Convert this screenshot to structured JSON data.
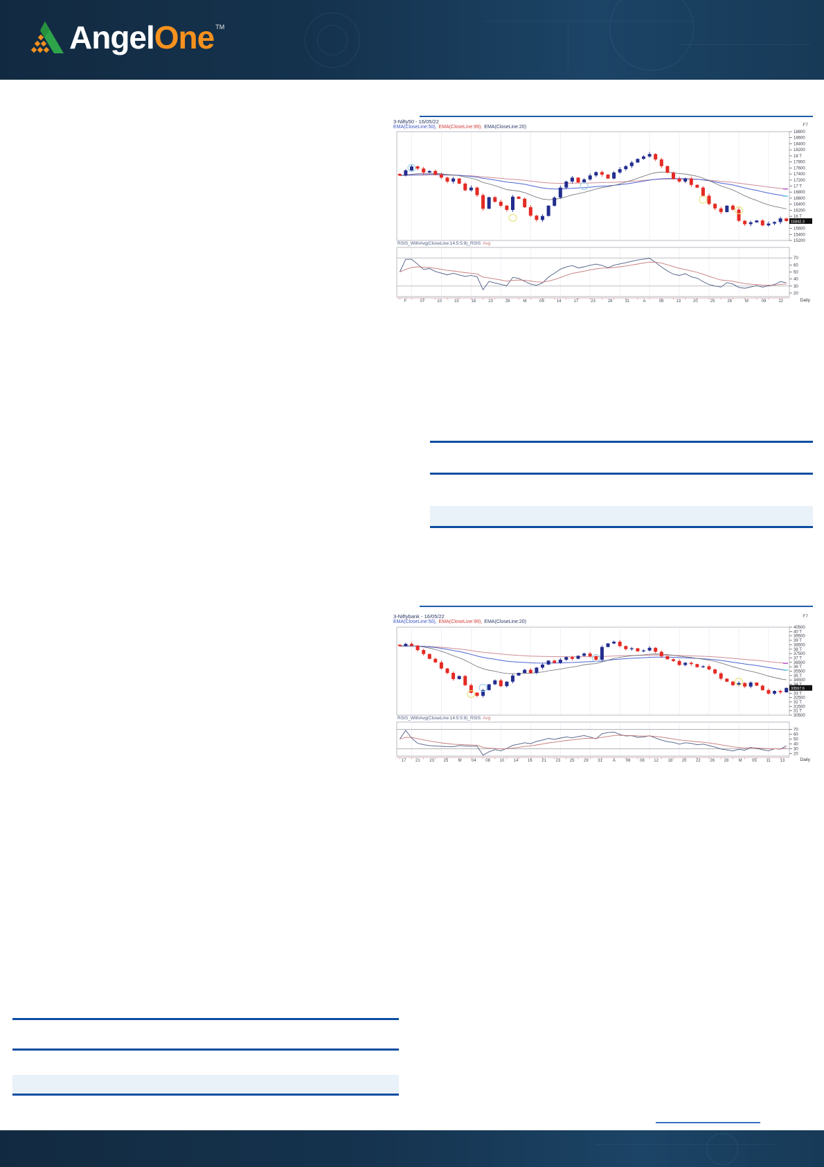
{
  "header": {
    "logo_angel": "Angel",
    "logo_one": "One",
    "logo_tm": "TM"
  },
  "theme": {
    "rule_blue": "#0b4da2",
    "chart_rule_blue": "#1f5ca9",
    "band_fill": "#e9f1f9",
    "header_bg": "#15334e",
    "logo_green": "#2ea44a",
    "logo_orange": "#f5911e",
    "candle_up": "#232d8f",
    "candle_down": "#e42a24",
    "ema20": "#6b6b74",
    "ema50": "#4c63cf",
    "ema99": "#cf8d95",
    "rsi": "#4a5a80",
    "rsi_avg": "#c57676",
    "axis_text": "#3a3a4a",
    "grid": "#ececf4",
    "last_price_bg": "#101010"
  },
  "chart_data": [
    {
      "type": "candlestick",
      "title": "3-Nifty50 - 16/05/22",
      "corner_label": "F7",
      "timeframe_label": "Daily",
      "legend": [
        {
          "text": "EMA(CloseLine:50),",
          "color": "#3d55c6"
        },
        {
          "text": "EMA(CloseLine:99),",
          "color": "#d23a3a"
        },
        {
          "text": "EMA(CloseLine:20)",
          "color": "#2b3a67"
        }
      ],
      "rsi_label": "RSIS_WithAvg(CloseLine:14:5:5:9)_RSIS",
      "rsi_label_avg": "Avg",
      "rsi_ticks": [
        70,
        60,
        50,
        40,
        30,
        20
      ],
      "y_min": 15200,
      "y_max": 18800,
      "y_step": 200,
      "last_price": "15842.3",
      "x_labels": [
        "F",
        "07",
        "10",
        "15",
        "18",
        "23",
        "28",
        "M",
        "09",
        "14",
        "17",
        "23",
        "28",
        "31",
        "A",
        "08",
        "13",
        "20",
        "25",
        "28",
        "M",
        "09",
        "12"
      ],
      "closes": [
        17350,
        17520,
        17650,
        17580,
        17450,
        17500,
        17380,
        17280,
        17150,
        17250,
        17080,
        16860,
        16950,
        16700,
        16250,
        16630,
        16480,
        16350,
        16210,
        16650,
        16580,
        16300,
        16020,
        15880,
        16010,
        16350,
        16620,
        16950,
        17150,
        17280,
        17120,
        17220,
        17350,
        17460,
        17380,
        17250,
        17450,
        17560,
        17660,
        17780,
        17900,
        17980,
        18060,
        17880,
        17660,
        17440,
        17240,
        17150,
        17250,
        17040,
        16950,
        16680,
        16410,
        16260,
        16140,
        16350,
        16220,
        15850,
        15740,
        15800,
        15860,
        15700,
        15760,
        15810,
        15930,
        15842
      ],
      "annotations": [
        {
          "i": 2,
          "p": 17600,
          "color": "#9fd4ea"
        },
        {
          "i": 19,
          "p": 15950,
          "color": "#e9e279"
        },
        {
          "i": 31,
          "p": 17000,
          "color": "#9fd4ea"
        },
        {
          "i": 51,
          "p": 16550,
          "color": "#e9e279"
        },
        {
          "i": 57,
          "p": 16200,
          "color": "#e9e279"
        }
      ]
    },
    {
      "type": "candlestick",
      "title": "3-Niftybank - 16/05/22",
      "corner_label": "F7",
      "timeframe_label": "Daily",
      "legend": [
        {
          "text": "EMA(CloseLine:50),",
          "color": "#3d55c6"
        },
        {
          "text": "EMA(CloseLine:99),",
          "color": "#d23a3a"
        },
        {
          "text": "EMA(CloseLine:20)",
          "color": "#2b3a67"
        }
      ],
      "rsi_label": "RSIS_WithAvg(CloseLine:14:5:5:9)_RSIS",
      "rsi_label_avg": "Avg",
      "rsi_ticks": [
        70,
        60,
        50,
        40,
        30,
        20
      ],
      "y_min": 30500,
      "y_max": 40500,
      "y_step": 500,
      "last_price": "33597.6",
      "x_labels": [
        "17",
        "21",
        "23",
        "25",
        "M",
        "04",
        "08",
        "10",
        "14",
        "16",
        "21",
        "23",
        "25",
        "29",
        "31",
        "A",
        "06",
        "08",
        "12",
        "18",
        "20",
        "22",
        "26",
        "28",
        "M",
        "05",
        "11",
        "13"
      ],
      "closes": [
        38350,
        38600,
        38400,
        37900,
        37450,
        36900,
        36500,
        35800,
        35300,
        34600,
        34950,
        33900,
        33050,
        32700,
        33350,
        34000,
        34450,
        33800,
        34300,
        35000,
        35300,
        35650,
        35300,
        35900,
        36250,
        36700,
        36450,
        36800,
        37100,
        36900,
        37250,
        37500,
        37200,
        36800,
        38250,
        38650,
        38850,
        38350,
        38000,
        38100,
        37750,
        37850,
        38150,
        37700,
        37200,
        36850,
        36650,
        36200,
        36450,
        36300,
        35950,
        36050,
        35700,
        35250,
        34650,
        34300,
        33900,
        34150,
        33750,
        34200,
        33850,
        33350,
        32950,
        33250,
        33100,
        33597
      ],
      "annotations": [
        {
          "i": 12,
          "p": 32900,
          "color": "#e9e279"
        },
        {
          "i": 14,
          "p": 33600,
          "color": "#9fd4ea"
        },
        {
          "i": 33,
          "p": 37000,
          "color": "#9fd4ea"
        },
        {
          "i": 57,
          "p": 34300,
          "color": "#e9e279"
        }
      ]
    }
  ]
}
